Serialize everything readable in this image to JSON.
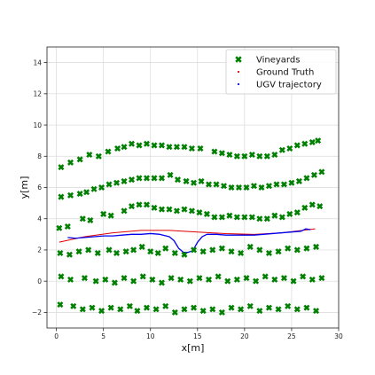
{
  "chart_data": {
    "type": "scatter",
    "title": "",
    "xlabel": "x[m]",
    "ylabel": "y[m]",
    "xlim": [
      -1,
      30
    ],
    "ylim": [
      -3,
      15
    ],
    "xticks": [
      0,
      5,
      10,
      15,
      20,
      25,
      30
    ],
    "yticks": [
      -2,
      0,
      2,
      4,
      6,
      8,
      10,
      12,
      14
    ],
    "grid": true,
    "legend_position": "top-right",
    "series": [
      {
        "name": "Vineyards",
        "kind": "scatter",
        "marker": "x-cross",
        "color": "#008000",
        "rows": [
          {
            "x": [
              0.5,
              1.5,
              2.5,
              3.5,
              4.5,
              5.5,
              6.5,
              7.2,
              8,
              8.8,
              9.6,
              10.4,
              11.2,
              12,
              12.8,
              13.6,
              14.4,
              15.3,
              16.8,
              17.6,
              18.4,
              19.2,
              20,
              20.8,
              21.6,
              22.4,
              23.2,
              24,
              24.8,
              25.6,
              26.4,
              27.2,
              27.8
            ],
            "y": [
              7.3,
              7.6,
              7.8,
              8.1,
              8.0,
              8.3,
              8.5,
              8.6,
              8.8,
              8.7,
              8.8,
              8.7,
              8.7,
              8.6,
              8.6,
              8.6,
              8.5,
              8.5,
              8.3,
              8.2,
              8.1,
              8.0,
              8.0,
              8.1,
              8.0,
              8.0,
              8.1,
              8.4,
              8.5,
              8.7,
              8.8,
              8.9,
              9.0
            ]
          },
          {
            "x": [
              0.5,
              1.5,
              2.5,
              3.2,
              4,
              4.8,
              5.6,
              6.4,
              7.2,
              8,
              8.8,
              9.6,
              10.4,
              11.2,
              12.1,
              12.9,
              13.8,
              14.6,
              15.4,
              16.2,
              17,
              17.8,
              18.6,
              19.4,
              20.2,
              21,
              21.8,
              22.6,
              23.4,
              24.2,
              25,
              25.8,
              26.6,
              27.4,
              28.2
            ],
            "y": [
              5.4,
              5.5,
              5.6,
              5.7,
              5.9,
              6.0,
              6.2,
              6.3,
              6.4,
              6.5,
              6.6,
              6.6,
              6.6,
              6.6,
              6.8,
              6.5,
              6.4,
              6.3,
              6.4,
              6.2,
              6.2,
              6.1,
              6.0,
              6.0,
              6.0,
              6.1,
              6.0,
              6.1,
              6.2,
              6.2,
              6.3,
              6.4,
              6.6,
              6.8,
              7.0
            ]
          },
          {
            "x": [
              0.3,
              1.2,
              2.8,
              3.6,
              5,
              5.8,
              7.2,
              8,
              8.8,
              9.6,
              10.4,
              11.2,
              12,
              12.8,
              13.6,
              14.4,
              15.2,
              16,
              16.8,
              17.6,
              18.4,
              19.2,
              20,
              20.8,
              21.6,
              22.4,
              23.2,
              24,
              24.8,
              25.6,
              26.4,
              27.2,
              28
            ],
            "y": [
              3.4,
              3.5,
              4.0,
              3.9,
              4.3,
              4.2,
              4.5,
              4.8,
              4.9,
              4.9,
              4.7,
              4.6,
              4.6,
              4.5,
              4.6,
              4.5,
              4.4,
              4.3,
              4.1,
              4.1,
              4.2,
              4.1,
              4.1,
              4.1,
              4.0,
              4.0,
              4.2,
              4.1,
              4.3,
              4.4,
              4.7,
              4.9,
              4.8
            ]
          },
          {
            "x": [
              0.4,
              1.4,
              2.4,
              3.4,
              4.4,
              5.6,
              6.4,
              7.4,
              8.2,
              9.1,
              10,
              10.8,
              11.6,
              12.6,
              13.6,
              14.6,
              15.6,
              16.6,
              17.6,
              18.6,
              19.6,
              20.6,
              21.6,
              22.6,
              23.6,
              24.6,
              25.6,
              26.6,
              27.6
            ],
            "y": [
              1.8,
              1.7,
              1.9,
              2.0,
              1.8,
              2.0,
              1.8,
              1.9,
              2.0,
              2.2,
              1.9,
              1.8,
              2.1,
              1.8,
              1.7,
              2.0,
              1.9,
              2.0,
              2.1,
              1.9,
              1.8,
              2.2,
              2.0,
              1.8,
              1.9,
              2.1,
              2.0,
              2.1,
              2.2
            ]
          },
          {
            "x": [
              0.5,
              1.5,
              3,
              4.2,
              5.2,
              6.2,
              7.2,
              8.2,
              9.2,
              10.2,
              11.2,
              12.2,
              13.2,
              14.2,
              15.2,
              16.2,
              17.2,
              18.2,
              19.2,
              20.2,
              21.2,
              22.2,
              23.2,
              24.2,
              25.2,
              26.2,
              27.2,
              28.2
            ],
            "y": [
              0.3,
              0.1,
              0.2,
              0.0,
              0.1,
              -0.1,
              0.2,
              0.0,
              0.3,
              0.1,
              -0.1,
              0.2,
              0.1,
              0.0,
              0.2,
              0.1,
              0.3,
              0.0,
              0.1,
              0.2,
              0.0,
              0.3,
              0.1,
              0.2,
              0.0,
              0.3,
              0.1,
              0.2
            ]
          },
          {
            "x": [
              0.4,
              1.8,
              2.8,
              3.8,
              4.8,
              5.8,
              6.8,
              7.8,
              8.6,
              9.6,
              10.6,
              11.6,
              12.6,
              13.6,
              14.6,
              15.6,
              16.6,
              17.6,
              18.6,
              19.6,
              20.6,
              21.6,
              22.6,
              23.6,
              24.6,
              25.6,
              26.6,
              27.6
            ],
            "y": [
              -1.5,
              -1.6,
              -1.8,
              -1.7,
              -1.9,
              -1.7,
              -1.8,
              -1.6,
              -1.9,
              -1.7,
              -1.8,
              -1.6,
              -2.0,
              -1.8,
              -1.7,
              -1.9,
              -1.8,
              -2.0,
              -1.7,
              -1.8,
              -1.6,
              -1.9,
              -1.7,
              -1.8,
              -1.6,
              -1.8,
              -1.7,
              -1.9
            ]
          }
        ]
      },
      {
        "name": "Ground Truth",
        "kind": "line",
        "color": "#e00000",
        "x": [
          0.3,
          3,
          6,
          9,
          12,
          15,
          18,
          21,
          24,
          27.5
        ],
        "y": [
          2.5,
          2.85,
          3.1,
          3.25,
          3.25,
          3.15,
          3.05,
          3.0,
          3.1,
          3.35
        ]
      },
      {
        "name": "UGV trajectory",
        "kind": "line",
        "color": "#0000ee",
        "x": [
          1.2,
          2,
          3,
          4,
          5,
          6,
          7,
          8,
          9,
          10,
          11,
          12,
          12.5,
          13,
          13.5,
          14,
          14.5,
          15,
          15.5,
          16,
          17,
          18,
          19,
          20,
          21,
          22,
          23,
          24,
          25,
          26,
          26.5,
          27
        ],
        "y": [
          2.8,
          2.75,
          2.8,
          2.85,
          2.9,
          2.9,
          2.95,
          3.0,
          3.0,
          3.05,
          3.0,
          2.85,
          2.6,
          2.1,
          1.85,
          1.85,
          1.95,
          2.5,
          2.85,
          3.0,
          3.0,
          2.95,
          2.95,
          2.95,
          2.95,
          3.0,
          3.05,
          3.1,
          3.15,
          3.2,
          3.35,
          3.3
        ]
      }
    ]
  }
}
